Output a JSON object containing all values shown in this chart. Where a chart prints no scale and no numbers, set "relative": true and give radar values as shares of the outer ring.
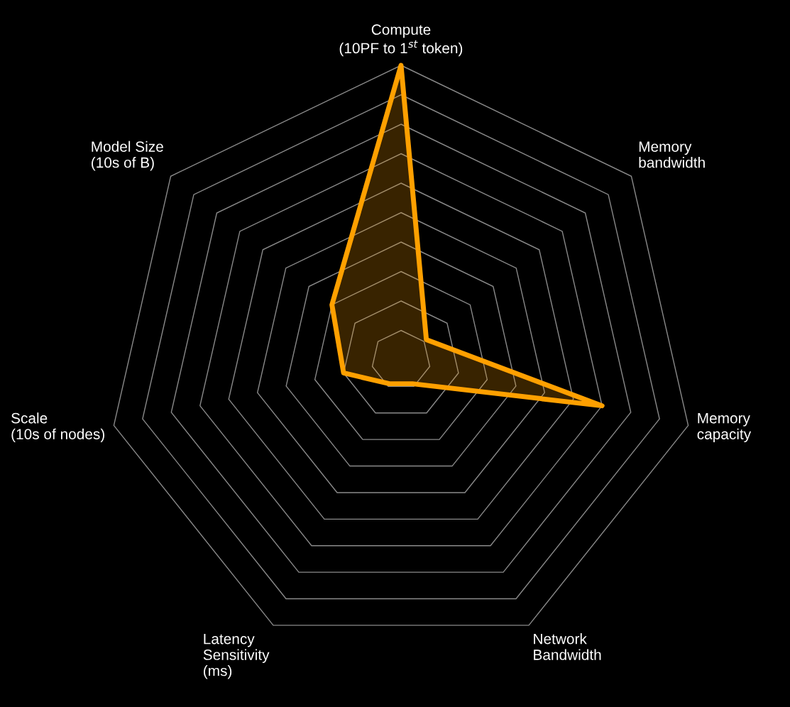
{
  "chart_data": {
    "type": "radar",
    "relative": true,
    "grid": true,
    "categories": [
      "Compute\n(10PF to 1$^{st}$ token)",
      "Memory\nbandwidth",
      "Memory\ncapacity",
      "Network\nBandwidth",
      "Latency\nSensitivity\n(ms)",
      "Scale\n(10s of nodes)",
      "Model Size\n(10s of B)"
    ],
    "series": [
      {
        "color": "#ffa000",
        "values": [
          1.0,
          0.11,
          0.7,
          0.09,
          0.09,
          0.2,
          0.3
        ]
      }
    ]
  }
}
